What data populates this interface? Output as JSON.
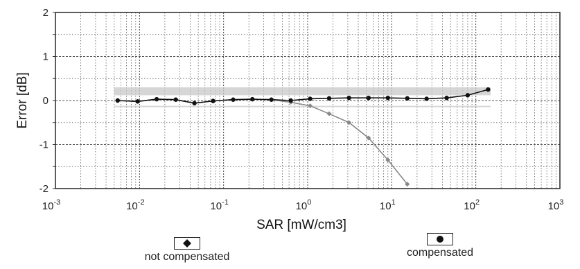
{
  "chart_data": {
    "type": "line",
    "xlabel": "SAR [mW/cm3]",
    "ylabel": "Error [dB]",
    "xscale": "log",
    "xlim": [
      0.001,
      1000
    ],
    "ylim": [
      -2,
      2
    ],
    "grid": true,
    "x_ticks": [
      {
        "value": 0.001,
        "base": "10",
        "exp": "-3"
      },
      {
        "value": 0.01,
        "base": "10",
        "exp": "-2"
      },
      {
        "value": 0.1,
        "base": "10",
        "exp": "-1"
      },
      {
        "value": 1,
        "base": "10",
        "exp": "0"
      },
      {
        "value": 10,
        "base": "10",
        "exp": "1"
      },
      {
        "value": 100,
        "base": "10",
        "exp": "2"
      },
      {
        "value": 1000,
        "base": "10",
        "exp": "3"
      }
    ],
    "y_ticks": [
      "2",
      "1",
      "0",
      "-1",
      "-2"
    ],
    "bands": [
      {
        "x": [
          0.005,
          150
        ],
        "y": [
          0.12,
          0.3
        ],
        "color": "#c8c8c8"
      },
      {
        "x": [
          0.005,
          150
        ],
        "y": [
          -0.12,
          -0.15
        ],
        "color": "#c8c8c8"
      }
    ],
    "series": [
      {
        "name": "not compensated",
        "marker": "diamond",
        "color": "#888888",
        "x": [
          0.0055,
          0.0095,
          0.016,
          0.027,
          0.045,
          0.075,
          0.13,
          0.22,
          0.37,
          0.63,
          1.07,
          1.8,
          3.1,
          5.3,
          9.0,
          15.3
        ],
        "y": [
          0.0,
          -0.02,
          0.03,
          0.02,
          -0.06,
          -0.01,
          0.02,
          0.03,
          0.02,
          -0.04,
          -0.12,
          -0.3,
          -0.5,
          -0.85,
          -1.35,
          -1.9
        ]
      },
      {
        "name": "compensated",
        "marker": "circle",
        "color": "#111111",
        "x": [
          0.0055,
          0.0095,
          0.016,
          0.027,
          0.045,
          0.075,
          0.13,
          0.22,
          0.37,
          0.63,
          1.07,
          1.8,
          3.1,
          5.3,
          9.0,
          15.3,
          26,
          45,
          80,
          140
        ],
        "y": [
          0.0,
          -0.02,
          0.03,
          0.02,
          -0.06,
          -0.01,
          0.02,
          0.03,
          0.02,
          0.0,
          0.04,
          0.05,
          0.06,
          0.06,
          0.06,
          0.05,
          0.04,
          0.06,
          0.12,
          0.25
        ]
      }
    ],
    "legend": [
      {
        "label": "not compensated",
        "marker": "diamond"
      },
      {
        "label": "compensated",
        "marker": "circle"
      }
    ]
  }
}
